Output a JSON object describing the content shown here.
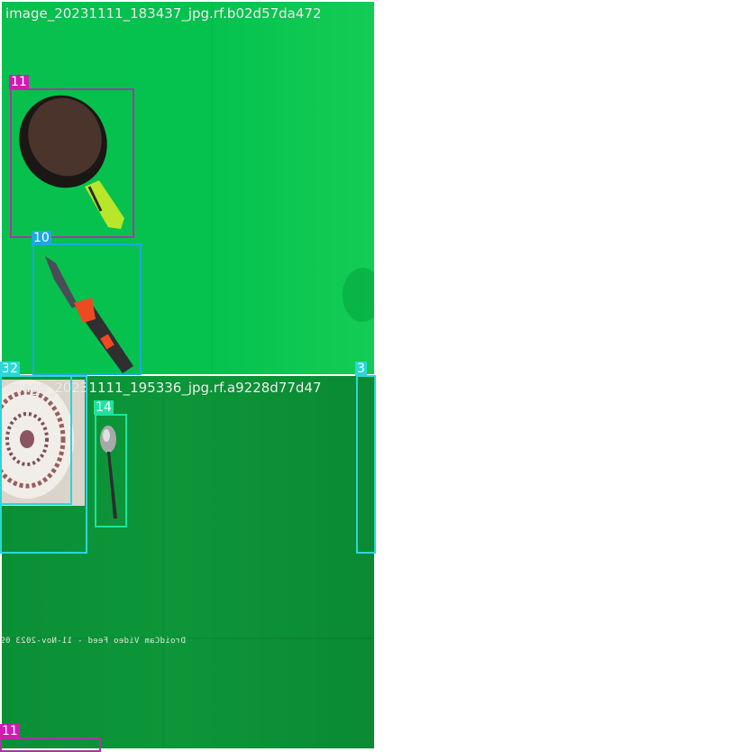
{
  "tiles": [
    {
      "title": "image_20231111_183437_jpg.rf.b02d57da472"
    },
    {
      "title": "image_20231111_195336_jpg.rf.a9228d77d47"
    }
  ],
  "labels": {
    "pan": "11",
    "knife": "10",
    "plate_outer": "3",
    "plate_inner": "2",
    "spoon": "14",
    "right_edge": "3",
    "pan_bottom": "11"
  },
  "overlay": "DroidCam Video Feed - 11-Nov-2023 09",
  "colors": {
    "class_11": "#a43aa0",
    "class_10": "#1ea8e0",
    "class_3": "#28d8d8",
    "class_2": "#28d8d8",
    "class_14": "#1de3a0",
    "tag_11": "#d21ab4"
  }
}
